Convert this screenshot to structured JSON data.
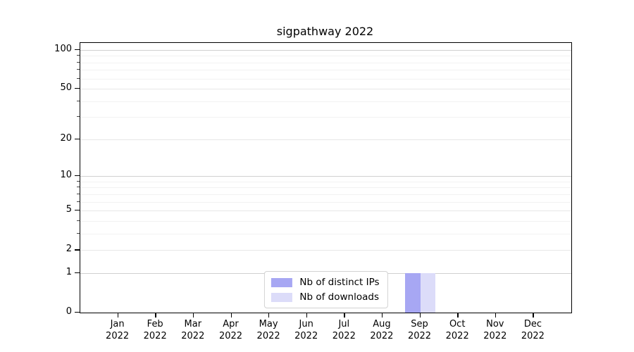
{
  "chart_data": {
    "type": "bar",
    "title": "sigpathway 2022",
    "xlabel": "",
    "ylabel": "",
    "grid": true,
    "x": {
      "categories": [
        {
          "month": "Jan",
          "year": "2022"
        },
        {
          "month": "Feb",
          "year": "2022"
        },
        {
          "month": "Mar",
          "year": "2022"
        },
        {
          "month": "Apr",
          "year": "2022"
        },
        {
          "month": "May",
          "year": "2022"
        },
        {
          "month": "Jun",
          "year": "2022"
        },
        {
          "month": "Jul",
          "year": "2022"
        },
        {
          "month": "Aug",
          "year": "2022"
        },
        {
          "month": "Sep",
          "year": "2022"
        },
        {
          "month": "Oct",
          "year": "2022"
        },
        {
          "month": "Nov",
          "year": "2022"
        },
        {
          "month": "Dec",
          "year": "2022"
        }
      ]
    },
    "series": [
      {
        "name": "Nb of distinct IPs",
        "color": "#a7a7f3",
        "values": [
          0,
          0,
          0,
          0,
          0,
          0,
          0,
          0,
          1,
          0,
          0,
          0
        ]
      },
      {
        "name": "Nb of downloads",
        "color": "#dcdcf9",
        "values": [
          0,
          0,
          0,
          0,
          0,
          0,
          0,
          0,
          1,
          0,
          0,
          0
        ]
      }
    ],
    "y_axis": {
      "scale": "log1p",
      "ylim": [
        0,
        113
      ],
      "ymax": 113,
      "ticks": [
        {
          "value": 0,
          "label": "0"
        },
        {
          "value": 1,
          "label": "1"
        },
        {
          "value": 2,
          "label": "2"
        },
        {
          "value": 5,
          "label": "5"
        },
        {
          "value": 10,
          "label": "10"
        },
        {
          "value": 20,
          "label": "20"
        },
        {
          "value": 50,
          "label": "50"
        },
        {
          "value": 100,
          "label": "100"
        }
      ],
      "minor_ticks": [
        3,
        4,
        6,
        7,
        8,
        9,
        30,
        40,
        60,
        70,
        80,
        90
      ],
      "decade_values": [
        1,
        10,
        100
      ]
    },
    "legend": {
      "position": "lower center",
      "entries": [
        "Nb of distinct IPs",
        "Nb of downloads"
      ]
    }
  },
  "colors": {
    "background": "#ffffff",
    "spine": "#000000",
    "grid_decade": "#d0d0d0",
    "grid_major": "#e7e7e7",
    "grid_minor": "#f2f2f2",
    "legend_border": "#d2d2d2",
    "bar_distinct_ips": "#a7a7f3",
    "bar_downloads": "#dcdcf9"
  }
}
